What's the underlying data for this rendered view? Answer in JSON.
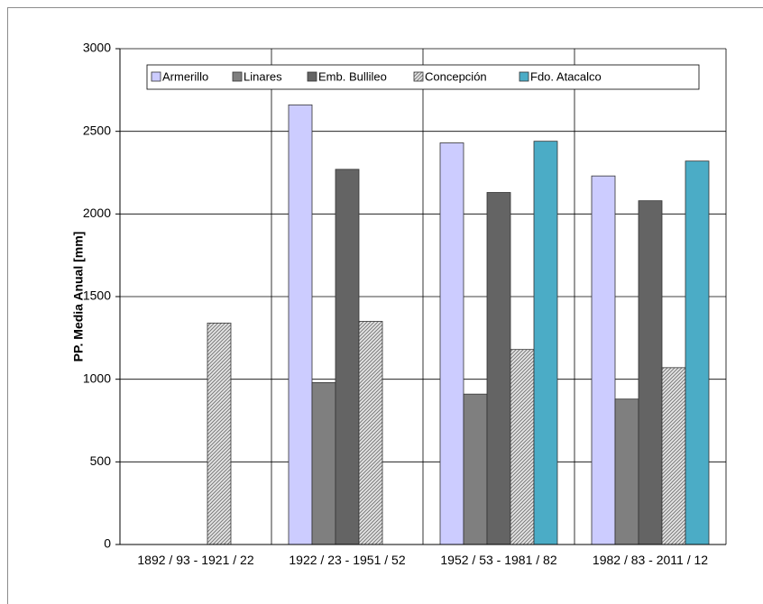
{
  "chart_data": {
    "type": "bar",
    "y_label": "PP. Media Anual [mm]",
    "categories": [
      "1892 / 93 - 1921 / 22",
      "1922 / 23 - 1951 / 52",
      "1952 / 53 - 1981 / 82",
      "1982 / 83 - 2011 / 12"
    ],
    "series": [
      {
        "name": "Armerillo",
        "color": "#ccccff",
        "values": [
          null,
          2660,
          2430,
          2230
        ]
      },
      {
        "name": "Linares",
        "color": "#7f7f7f",
        "values": [
          null,
          980,
          910,
          880
        ]
      },
      {
        "name": "Emb. Bullileo",
        "color": "#646464",
        "values": [
          null,
          2270,
          2130,
          2080
        ]
      },
      {
        "name": "Concepción",
        "color": "hatch",
        "values": [
          1340,
          1350,
          1180,
          1070
        ]
      },
      {
        "name": "Fdo. Atacalco",
        "color": "#4bacc6",
        "values": [
          null,
          null,
          2440,
          2320
        ]
      }
    ],
    "ylim": [
      0,
      3000
    ],
    "yticks": [
      0,
      500,
      1000,
      1500,
      2000,
      2500,
      3000
    ],
    "grid": true
  }
}
